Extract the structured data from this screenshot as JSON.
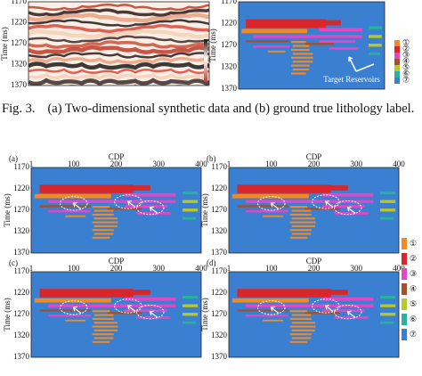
{
  "top_panels": [
    {
      "y_label": "Time (ms)",
      "y_ticks": [
        "1170",
        "1220",
        "1270",
        "1320",
        "1370"
      ]
    },
    {
      "y_label": "Time (ms)",
      "y_ticks": [
        "1170",
        "1220",
        "1270",
        "1320",
        "1370"
      ],
      "annotation": "Target Reservoirs"
    }
  ],
  "caption": {
    "number": "Fig. 3.",
    "text": "(a) Two-dimensional synthetic data and (b) ground true lithology label."
  },
  "panels": [
    {
      "label": "(a)",
      "x_label": "CDP",
      "x_ticks": [
        "1",
        "100",
        "200",
        "300",
        "400"
      ],
      "y_label": "Time (ms)",
      "y_ticks": [
        "1170",
        "1220",
        "1270",
        "1320",
        "1370"
      ]
    },
    {
      "label": "(b)",
      "x_label": "CDP",
      "x_ticks": [
        "1",
        "100",
        "200",
        "300",
        "400"
      ],
      "y_label": "Time (ms)",
      "y_ticks": [
        "1170",
        "1220",
        "1270",
        "1320",
        "1370"
      ]
    },
    {
      "label": "(c)",
      "x_label": "CDP",
      "x_ticks": [
        "1",
        "100",
        "200",
        "300",
        "400"
      ],
      "y_label": "Time (ms)",
      "y_ticks": [
        "1170",
        "1220",
        "1270",
        "1320",
        "1370"
      ]
    },
    {
      "label": "(d)",
      "x_label": "CDP",
      "x_ticks": [
        "1",
        "100",
        "200",
        "300",
        "400"
      ],
      "y_label": "Time (ms)",
      "y_ticks": [
        "1170",
        "1220",
        "1270",
        "1320",
        "1370"
      ]
    }
  ],
  "legend": [
    "①",
    "②",
    "③",
    "④",
    "⑤",
    "⑥",
    "⑦"
  ]
}
